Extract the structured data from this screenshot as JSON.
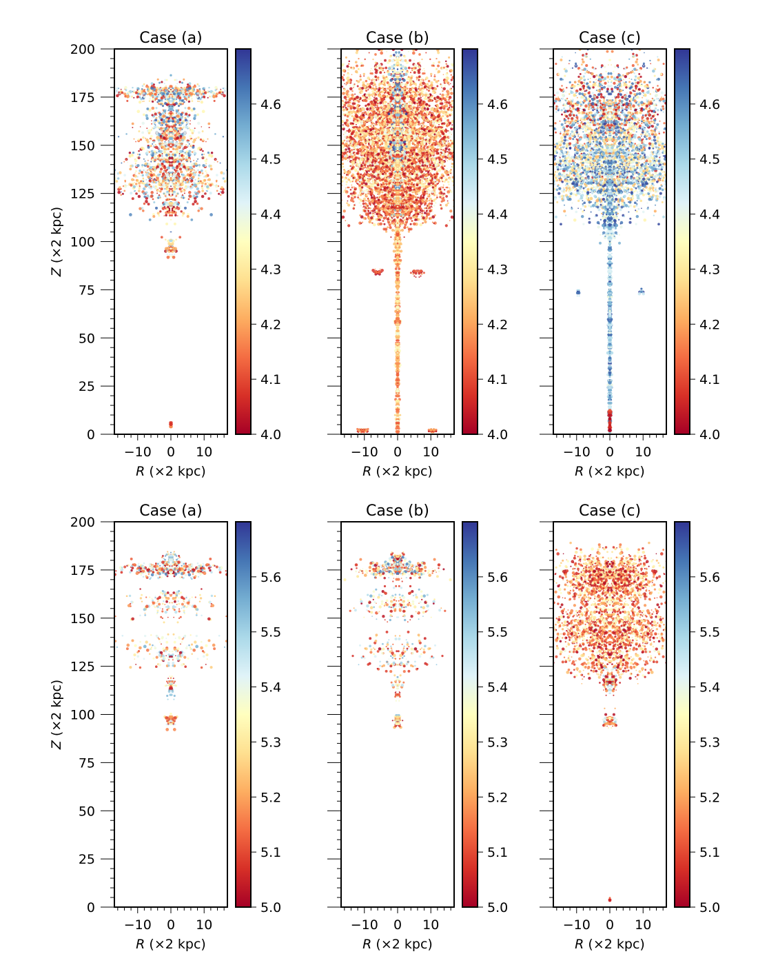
{
  "figure": {
    "background": "#ffffff"
  },
  "colormap": {
    "name": "RdYlBu",
    "stops": [
      "#a50026",
      "#d73027",
      "#f46d43",
      "#fdae61",
      "#fee090",
      "#ffffbf",
      "#e0f3f8",
      "#abd9e9",
      "#74add1",
      "#4575b4",
      "#313695"
    ]
  },
  "chart_data": [
    {
      "type": "scatter",
      "title": "Case (a)",
      "xlabel_prefix": "R",
      "xlabel_unit": "(×2 kpc)",
      "ylabel_prefix": "Z",
      "ylabel_unit": "(×2 kpc)",
      "show_ylabel": true,
      "show_yticklabels": true,
      "xlim": [
        -17,
        17
      ],
      "ylim": [
        0,
        200
      ],
      "xticks": [
        "−10",
        "0",
        "10"
      ],
      "xtick_values": [
        -10,
        0,
        10
      ],
      "yticks": [
        "0",
        "25",
        "50",
        "75",
        "100",
        "125",
        "150",
        "175",
        "200"
      ],
      "ytick_values": [
        0,
        25,
        50,
        75,
        100,
        125,
        150,
        175,
        200
      ],
      "colorbar": {
        "range": [
          4.0,
          4.7
        ],
        "ticks": [
          "4.0",
          "4.1",
          "4.2",
          "4.3",
          "4.4",
          "4.5",
          "4.6"
        ],
        "tick_values": [
          4.0,
          4.1,
          4.2,
          4.3,
          4.4,
          4.5,
          4.6
        ]
      },
      "features": [
        {
          "x": 0,
          "y": 177,
          "sx": 9,
          "sy": 2,
          "n": 220,
          "cmin": 0.0,
          "cmax": 0.9
        },
        {
          "x": 0,
          "y": 165,
          "sx": 3.5,
          "sy": 10,
          "n": 220,
          "cmin": 0.0,
          "cmax": 0.95
        },
        {
          "x": 0,
          "y": 140,
          "sx": 6,
          "sy": 12,
          "n": 420,
          "cmin": 0.0,
          "cmax": 0.95
        },
        {
          "x": 0,
          "y": 130,
          "sx": 10,
          "sy": 3,
          "n": 120,
          "cmin": 0.0,
          "cmax": 0.8
        },
        {
          "x": 0,
          "y": 118,
          "sx": 0.8,
          "sy": 3,
          "n": 40,
          "cmin": 0.0,
          "cmax": 0.8
        },
        {
          "x": 0,
          "y": 97,
          "sx": 0.8,
          "sy": 2,
          "n": 30,
          "cmin": 0.0,
          "cmax": 0.8
        },
        {
          "x": 0,
          "y": 5,
          "sx": 0.2,
          "sy": 1,
          "n": 6,
          "cmin": 0.0,
          "cmax": 0.3
        }
      ]
    },
    {
      "type": "scatter",
      "title": "Case (b)",
      "xlabel_prefix": "R",
      "xlabel_unit": "(×2 kpc)",
      "show_ylabel": false,
      "show_yticklabels": false,
      "xlim": [
        -17,
        17
      ],
      "ylim": [
        0,
        200
      ],
      "xticks": [
        "−10",
        "0",
        "10"
      ],
      "xtick_values": [
        -10,
        0,
        10
      ],
      "yticks": [],
      "ytick_values": [
        0,
        25,
        50,
        75,
        100,
        125,
        150,
        175,
        200
      ],
      "colorbar": {
        "range": [
          4.0,
          4.7
        ],
        "ticks": [
          "4.0",
          "4.1",
          "4.2",
          "4.3",
          "4.4",
          "4.5",
          "4.6"
        ],
        "tick_values": [
          4.0,
          4.1,
          4.2,
          4.3,
          4.4,
          4.5,
          4.6
        ]
      },
      "features": [
        {
          "x": 0,
          "y": 165,
          "sx": 11,
          "sy": 14,
          "n": 1600,
          "cmin": 0.0,
          "cmax": 0.55
        },
        {
          "x": 0,
          "y": 138,
          "sx": 10,
          "sy": 12,
          "n": 1500,
          "cmin": 0.0,
          "cmax": 0.6
        },
        {
          "x": 0,
          "y": 118,
          "sx": 5,
          "sy": 5,
          "n": 260,
          "cmin": 0.0,
          "cmax": 0.4
        },
        {
          "x": 0,
          "y": 160,
          "sx": 1.2,
          "sy": 25,
          "n": 220,
          "cmin": 0.3,
          "cmax": 1.0
        },
        {
          "x": 0,
          "y": 100,
          "sx": 0.5,
          "sy": 6,
          "n": 90,
          "cmin": 0.1,
          "cmax": 0.6
        },
        {
          "x": 0,
          "y": 55,
          "sx": 0.25,
          "sy": 45,
          "n": 420,
          "cmin": 0.15,
          "cmax": 0.55
        },
        {
          "x": -10.5,
          "y": 2,
          "sx": 0.8,
          "sy": 0.5,
          "n": 15,
          "cmin": 0.0,
          "cmax": 0.4
        },
        {
          "x": 10.5,
          "y": 2,
          "sx": 0.8,
          "sy": 0.5,
          "n": 15,
          "cmin": 0.0,
          "cmax": 0.4
        },
        {
          "x": -6,
          "y": 84,
          "sx": 0.8,
          "sy": 0.8,
          "n": 10,
          "cmin": 0.0,
          "cmax": 0.3
        },
        {
          "x": 6,
          "y": 84,
          "sx": 0.8,
          "sy": 0.8,
          "n": 10,
          "cmin": 0.0,
          "cmax": 0.3
        }
      ]
    },
    {
      "type": "scatter",
      "title": "Case (c)",
      "xlabel_prefix": "R",
      "xlabel_unit": "(×2 kpc)",
      "show_ylabel": false,
      "show_yticklabels": false,
      "xlim": [
        -17,
        17
      ],
      "ylim": [
        0,
        200
      ],
      "xticks": [
        "−10",
        "0",
        "10"
      ],
      "xtick_values": [
        -10,
        0,
        10
      ],
      "yticks": [],
      "ytick_values": [
        0,
        25,
        50,
        75,
        100,
        125,
        150,
        175,
        200
      ],
      "colorbar": {
        "range": [
          4.0,
          4.7
        ],
        "ticks": [
          "4.0",
          "4.1",
          "4.2",
          "4.3",
          "4.4",
          "4.5",
          "4.6"
        ],
        "tick_values": [
          4.0,
          4.1,
          4.2,
          4.3,
          4.4,
          4.5,
          4.6
        ]
      },
      "features": [
        {
          "x": 0,
          "y": 165,
          "sx": 10,
          "sy": 14,
          "n": 1000,
          "cmin": 0.0,
          "cmax": 1.0
        },
        {
          "x": 0,
          "y": 137,
          "sx": 10,
          "sy": 10,
          "n": 1100,
          "cmin": 0.3,
          "cmax": 1.0
        },
        {
          "x": 0,
          "y": 115,
          "sx": 1.2,
          "sy": 8,
          "n": 150,
          "cmin": 0.5,
          "cmax": 1.0
        },
        {
          "x": 0,
          "y": 55,
          "sx": 0.25,
          "sy": 45,
          "n": 420,
          "cmin": 0.55,
          "cmax": 0.95
        },
        {
          "x": 0,
          "y": 7,
          "sx": 0.2,
          "sy": 4,
          "n": 25,
          "cmin": 0.0,
          "cmax": 0.2
        },
        {
          "x": -9.5,
          "y": 74,
          "sx": 0.3,
          "sy": 1,
          "n": 6,
          "cmin": 0.6,
          "cmax": 1.0
        },
        {
          "x": 9.5,
          "y": 74,
          "sx": 0.3,
          "sy": 1,
          "n": 6,
          "cmin": 0.6,
          "cmax": 1.0
        }
      ]
    },
    {
      "type": "scatter",
      "title": "Case (a)",
      "xlabel_prefix": "R",
      "xlabel_unit": "(×2 kpc)",
      "ylabel_prefix": "Z",
      "ylabel_unit": "(×2 kpc)",
      "show_ylabel": true,
      "show_yticklabels": true,
      "xlim": [
        -17,
        17
      ],
      "ylim": [
        0,
        200
      ],
      "xticks": [
        "−10",
        "0",
        "10"
      ],
      "xtick_values": [
        -10,
        0,
        10
      ],
      "yticks": [
        "0",
        "25",
        "50",
        "75",
        "100",
        "125",
        "150",
        "175",
        "200"
      ],
      "ytick_values": [
        0,
        25,
        50,
        75,
        100,
        125,
        150,
        175,
        200
      ],
      "colorbar": {
        "range": [
          5.0,
          5.7
        ],
        "ticks": [
          "5.0",
          "5.1",
          "5.2",
          "5.3",
          "5.4",
          "5.5",
          "5.6"
        ],
        "tick_values": [
          5.0,
          5.1,
          5.2,
          5.3,
          5.4,
          5.5,
          5.6
        ]
      },
      "features": [
        {
          "x": 0,
          "y": 175,
          "sx": 8,
          "sy": 2,
          "n": 160,
          "cmin": 0.0,
          "cmax": 0.9
        },
        {
          "x": 0,
          "y": 180,
          "sx": 1,
          "sy": 3,
          "n": 40,
          "cmin": 0.0,
          "cmax": 0.9
        },
        {
          "x": 0,
          "y": 158,
          "sx": 7,
          "sy": 4,
          "n": 80,
          "cmin": 0.0,
          "cmax": 0.8
        },
        {
          "x": 0,
          "y": 133,
          "sx": 7,
          "sy": 5,
          "n": 80,
          "cmin": 0.0,
          "cmax": 0.8
        },
        {
          "x": 0,
          "y": 115,
          "sx": 0.6,
          "sy": 3,
          "n": 25,
          "cmin": 0.0,
          "cmax": 0.8
        },
        {
          "x": 0,
          "y": 97,
          "sx": 0.6,
          "sy": 2,
          "n": 25,
          "cmin": 0.0,
          "cmax": 0.8
        }
      ]
    },
    {
      "type": "scatter",
      "title": "Case (b)",
      "xlabel_prefix": "R",
      "xlabel_unit": "(×2 kpc)",
      "show_ylabel": false,
      "show_yticklabels": false,
      "xlim": [
        -17,
        17
      ],
      "ylim": [
        0,
        200
      ],
      "xticks": [
        "−10",
        "0",
        "10"
      ],
      "xtick_values": [
        -10,
        0,
        10
      ],
      "yticks": [],
      "ytick_values": [
        0,
        25,
        50,
        75,
        100,
        125,
        150,
        175,
        200
      ],
      "colorbar": {
        "range": [
          5.0,
          5.7
        ],
        "ticks": [
          "5.0",
          "5.1",
          "5.2",
          "5.3",
          "5.4",
          "5.5",
          "5.6"
        ],
        "tick_values": [
          5.0,
          5.1,
          5.2,
          5.3,
          5.4,
          5.5,
          5.6
        ]
      },
      "features": [
        {
          "x": 0,
          "y": 175,
          "sx": 7,
          "sy": 2,
          "n": 150,
          "cmin": 0.0,
          "cmax": 0.9
        },
        {
          "x": 0,
          "y": 180,
          "sx": 1,
          "sy": 3,
          "n": 40,
          "cmin": 0.0,
          "cmax": 0.9
        },
        {
          "x": 0,
          "y": 157,
          "sx": 6,
          "sy": 4,
          "n": 80,
          "cmin": 0.0,
          "cmax": 0.8
        },
        {
          "x": 0,
          "y": 132,
          "sx": 6,
          "sy": 5,
          "n": 75,
          "cmin": 0.0,
          "cmax": 0.8
        },
        {
          "x": 0,
          "y": 113,
          "sx": 0.6,
          "sy": 3,
          "n": 25,
          "cmin": 0.0,
          "cmax": 0.8
        },
        {
          "x": 0,
          "y": 97,
          "sx": 0.6,
          "sy": 2,
          "n": 25,
          "cmin": 0.0,
          "cmax": 0.8
        }
      ]
    },
    {
      "type": "scatter",
      "title": "Case (c)",
      "xlabel_prefix": "R",
      "xlabel_unit": "(×2 kpc)",
      "show_ylabel": false,
      "show_yticklabels": false,
      "xlim": [
        -17,
        17
      ],
      "ylim": [
        0,
        200
      ],
      "xticks": [
        "−10",
        "0",
        "10"
      ],
      "xtick_values": [
        -10,
        0,
        10
      ],
      "yticks": [],
      "ytick_values": [
        0,
        25,
        50,
        75,
        100,
        125,
        150,
        175,
        200
      ],
      "colorbar": {
        "range": [
          5.0,
          5.7
        ],
        "ticks": [
          "5.0",
          "5.1",
          "5.2",
          "5.3",
          "5.4",
          "5.5",
          "5.6"
        ],
        "tick_values": [
          5.0,
          5.1,
          5.2,
          5.3,
          5.4,
          5.5,
          5.6
        ]
      },
      "features": [
        {
          "x": 0,
          "y": 170,
          "sx": 8,
          "sy": 7,
          "n": 650,
          "cmin": 0.0,
          "cmax": 0.55
        },
        {
          "x": 0,
          "y": 143,
          "sx": 9,
          "sy": 8,
          "n": 620,
          "cmin": 0.0,
          "cmax": 0.55
        },
        {
          "x": 0,
          "y": 125,
          "sx": 8,
          "sy": 3,
          "n": 90,
          "cmin": 0.0,
          "cmax": 0.5
        },
        {
          "x": 0,
          "y": 117,
          "sx": 1,
          "sy": 4,
          "n": 50,
          "cmin": 0.0,
          "cmax": 0.8
        },
        {
          "x": 0,
          "y": 96,
          "sx": 0.8,
          "sy": 2,
          "n": 30,
          "cmin": 0.0,
          "cmax": 0.7
        },
        {
          "x": 0,
          "y": 4,
          "sx": 0.1,
          "sy": 0.5,
          "n": 3,
          "cmin": 0.0,
          "cmax": 0.2
        }
      ]
    }
  ]
}
